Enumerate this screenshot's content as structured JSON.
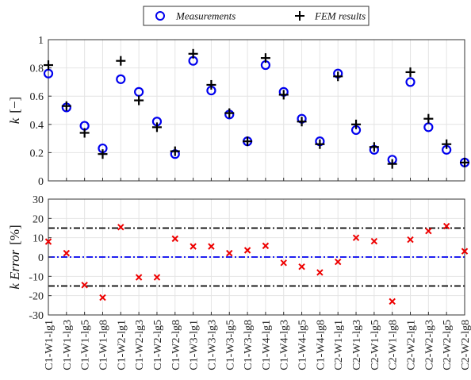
{
  "chart_data": [
    {
      "type": "scatter",
      "categories": [
        "C1-W1-lg1",
        "C1-W1-lg3",
        "C1-W1-lg5",
        "C1-W1-lg8",
        "C1-W2-lg1",
        "C1-W2-lg3",
        "C1-W2-lg5",
        "C1-W2-lg8",
        "C1-W3-lg1",
        "C1-W3-lg3",
        "C1-W3-lg5",
        "C1-W3-lg8",
        "C1-W4-lg1",
        "C1-W4-lg3",
        "C1-W4-lg5",
        "C1-W4-lg8",
        "C2-W1-lg1",
        "C2-W1-lg3",
        "C2-W1-lg5",
        "C2-W1-lg8",
        "C2-W2-lg1",
        "C2-W2-lg3",
        "C2-W2-lg5",
        "C2-W2-lg8"
      ],
      "series": [
        {
          "name": "Measurements",
          "marker": "circle",
          "color": "#0000ee",
          "values": [
            0.76,
            0.52,
            0.39,
            0.23,
            0.72,
            0.63,
            0.42,
            0.19,
            0.85,
            0.64,
            0.47,
            0.28,
            0.82,
            0.63,
            0.44,
            0.28,
            0.76,
            0.36,
            0.22,
            0.15,
            0.7,
            0.38,
            0.22,
            0.13
          ]
        },
        {
          "name": "FEM results",
          "marker": "plus",
          "color": "#000000",
          "values": [
            0.82,
            0.53,
            0.34,
            0.19,
            0.85,
            0.57,
            0.38,
            0.21,
            0.9,
            0.68,
            0.48,
            0.28,
            0.87,
            0.61,
            0.42,
            0.26,
            0.74,
            0.4,
            0.24,
            0.12,
            0.77,
            0.44,
            0.26,
            0.13
          ]
        }
      ],
      "ylabel_var": "k",
      "ylabel_unit": "[−]",
      "ylim": [
        0,
        1
      ],
      "yticks": [
        "0",
        "0.2",
        "0.4",
        "0.6",
        "0.8",
        "1"
      ],
      "grid": true,
      "legend": "top-center, outside"
    },
    {
      "type": "scatter",
      "series": [
        {
          "name": "k Error",
          "marker": "x",
          "color": "#ee0000",
          "values": [
            8,
            2,
            -14.5,
            -21,
            15.5,
            -10.5,
            -10.5,
            9.5,
            5.5,
            5.5,
            2,
            3.5,
            5.8,
            -3,
            -5,
            -8,
            -2.5,
            10,
            8.2,
            -23,
            9,
            13.5,
            16,
            3
          ]
        }
      ],
      "ylabel_var": "k Error",
      "ylabel_unit": "[%]",
      "ylim": [
        -30,
        30
      ],
      "yticks": [
        "-30",
        "-20",
        "-10",
        "0",
        "10",
        "20",
        "30"
      ],
      "reference_lines": [
        {
          "y": 15,
          "color": "#000000",
          "style": "dash-dot"
        },
        {
          "y": 0,
          "color": "#0000ee",
          "style": "dash-dot"
        },
        {
          "y": -15,
          "color": "#000000",
          "style": "dash-dot"
        }
      ],
      "grid": true
    }
  ]
}
